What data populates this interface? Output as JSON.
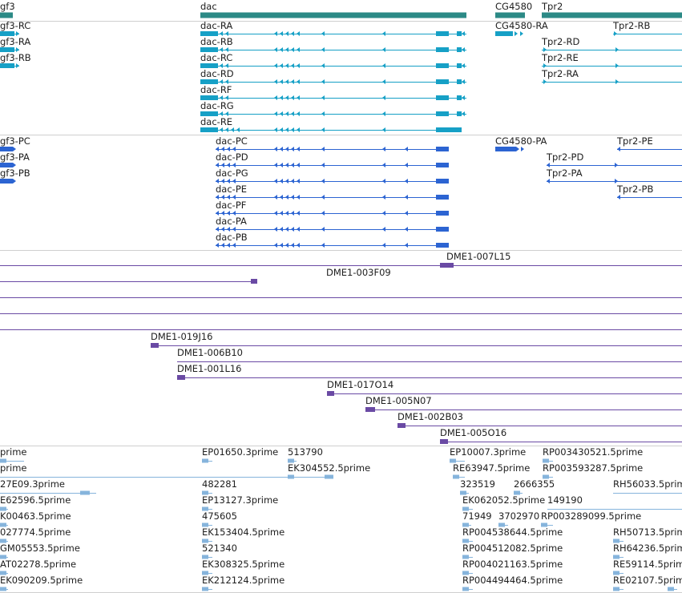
{
  "colors": {
    "gene": "#2c8a86",
    "mrna": "#16a0c6",
    "protein": "#2c64d2",
    "clone": "#6a4aa4",
    "est": "#86b4dc",
    "separator": "#cfcfcf"
  },
  "genes": [
    {
      "id": "g-fgf3",
      "label": "gf3"
    },
    {
      "id": "g-dac",
      "label": "dac"
    },
    {
      "id": "g-cg4580",
      "label": "CG4580"
    },
    {
      "id": "g-tpr2",
      "label": "Tpr2"
    }
  ],
  "transcripts": [
    {
      "id": "t-fgf3-rc",
      "label": "gf3-RC"
    },
    {
      "id": "t-fgf3-ra",
      "label": "gf3-RA"
    },
    {
      "id": "t-fgf3-rb",
      "label": "gf3-RB"
    },
    {
      "id": "t-dac-ra",
      "label": "dac-RA"
    },
    {
      "id": "t-dac-rb",
      "label": "dac-RB"
    },
    {
      "id": "t-dac-rc",
      "label": "dac-RC"
    },
    {
      "id": "t-dac-rd",
      "label": "dac-RD"
    },
    {
      "id": "t-dac-rf",
      "label": "dac-RF"
    },
    {
      "id": "t-dac-rg",
      "label": "dac-RG"
    },
    {
      "id": "t-dac-re",
      "label": "dac-RE"
    },
    {
      "id": "t-cg4580-ra",
      "label": "CG4580-RA"
    },
    {
      "id": "t-tpr2-rb",
      "label": "Tpr2-RB"
    },
    {
      "id": "t-tpr2-rd",
      "label": "Tpr2-RD"
    },
    {
      "id": "t-tpr2-re",
      "label": "Tpr2-RE"
    },
    {
      "id": "t-tpr2-ra",
      "label": "Tpr2-RA"
    }
  ],
  "proteins": [
    {
      "id": "p-fgf3-pc",
      "label": "gf3-PC"
    },
    {
      "id": "p-fgf3-pa",
      "label": "gf3-PA"
    },
    {
      "id": "p-fgf3-pb",
      "label": "gf3-PB"
    },
    {
      "id": "p-dac-pc",
      "label": "dac-PC"
    },
    {
      "id": "p-dac-pd",
      "label": "dac-PD"
    },
    {
      "id": "p-dac-pg",
      "label": "dac-PG"
    },
    {
      "id": "p-dac-pe",
      "label": "dac-PE"
    },
    {
      "id": "p-dac-pf",
      "label": "dac-PF"
    },
    {
      "id": "p-dac-pa",
      "label": "dac-PA"
    },
    {
      "id": "p-dac-pb",
      "label": "dac-PB"
    },
    {
      "id": "p-cg4580-pa",
      "label": "CG4580-PA"
    },
    {
      "id": "p-tpr2-pe",
      "label": "Tpr2-PE"
    },
    {
      "id": "p-tpr2-pd",
      "label": "Tpr2-PD"
    },
    {
      "id": "p-tpr2-pa",
      "label": "Tpr2-PA"
    },
    {
      "id": "p-tpr2-pb",
      "label": "Tpr2-PB"
    }
  ],
  "clones": [
    {
      "id": "c-007l15",
      "label": "DME1-007L15"
    },
    {
      "id": "c-003f09",
      "label": "DME1-003F09"
    },
    {
      "id": "c-019j16",
      "label": "DME1-019J16"
    },
    {
      "id": "c-006b10",
      "label": "DME1-006B10"
    },
    {
      "id": "c-001l16",
      "label": "DME1-001L16"
    },
    {
      "id": "c-017o14",
      "label": "DME1-017O14"
    },
    {
      "id": "c-005n07",
      "label": "DME1-005N07"
    },
    {
      "id": "c-002b03",
      "label": "DME1-002B03"
    },
    {
      "id": "c-005o16",
      "label": "DME1-005O16"
    }
  ],
  "ests": [
    {
      "id": "e-01",
      "label": "prime"
    },
    {
      "id": "e-02",
      "label": "EP01650.3prime"
    },
    {
      "id": "e-03",
      "label": "513790"
    },
    {
      "id": "e-04",
      "label": "EP10007.3prime"
    },
    {
      "id": "e-05",
      "label": "RP003430521.5prime"
    },
    {
      "id": "e-06",
      "label": "prime"
    },
    {
      "id": "e-07",
      "label": "EK304552.5prime"
    },
    {
      "id": "e-08",
      "label": "RE63947.5prime"
    },
    {
      "id": "e-09",
      "label": "RP003593287.5prime"
    },
    {
      "id": "e-10",
      "label": "27E09.3prime"
    },
    {
      "id": "e-11",
      "label": "482281"
    },
    {
      "id": "e-12",
      "label": "323519"
    },
    {
      "id": "e-13",
      "label": "2666355"
    },
    {
      "id": "e-14",
      "label": "RH56033.5prime"
    },
    {
      "id": "e-15",
      "label": "E62596.5prime"
    },
    {
      "id": "e-16",
      "label": "EP13127.3prime"
    },
    {
      "id": "e-17",
      "label": "EK062052.5prime"
    },
    {
      "id": "e-18",
      "label": "149190"
    },
    {
      "id": "e-19",
      "label": "K00463.5prime"
    },
    {
      "id": "e-20",
      "label": "475605"
    },
    {
      "id": "e-21",
      "label": "71949"
    },
    {
      "id": "e-22",
      "label": "3702970"
    },
    {
      "id": "e-23",
      "label": "RP003289099.5prime"
    },
    {
      "id": "e-24",
      "label": "027774.5prime"
    },
    {
      "id": "e-25",
      "label": "EK153404.5prime"
    },
    {
      "id": "e-26",
      "label": "RP004538644.5prime"
    },
    {
      "id": "e-27",
      "label": "RH50713.5prime"
    },
    {
      "id": "e-28",
      "label": "GM05553.5prime"
    },
    {
      "id": "e-29",
      "label": "521340"
    },
    {
      "id": "e-30",
      "label": "RP004512082.5prime"
    },
    {
      "id": "e-31",
      "label": "RH64236.5prime"
    },
    {
      "id": "e-32",
      "label": "AT02278.5prime"
    },
    {
      "id": "e-33",
      "label": "EK308325.5prime"
    },
    {
      "id": "e-34",
      "label": "RP004021163.5prime"
    },
    {
      "id": "e-35",
      "label": "RE59114.5prime"
    },
    {
      "id": "e-36",
      "label": "EK090209.5prime"
    },
    {
      "id": "e-37",
      "label": "EK212124.5prime"
    },
    {
      "id": "e-38",
      "label": "RP004494464.5prime"
    },
    {
      "id": "e-39",
      "label": "RE02107.5prime"
    }
  ]
}
